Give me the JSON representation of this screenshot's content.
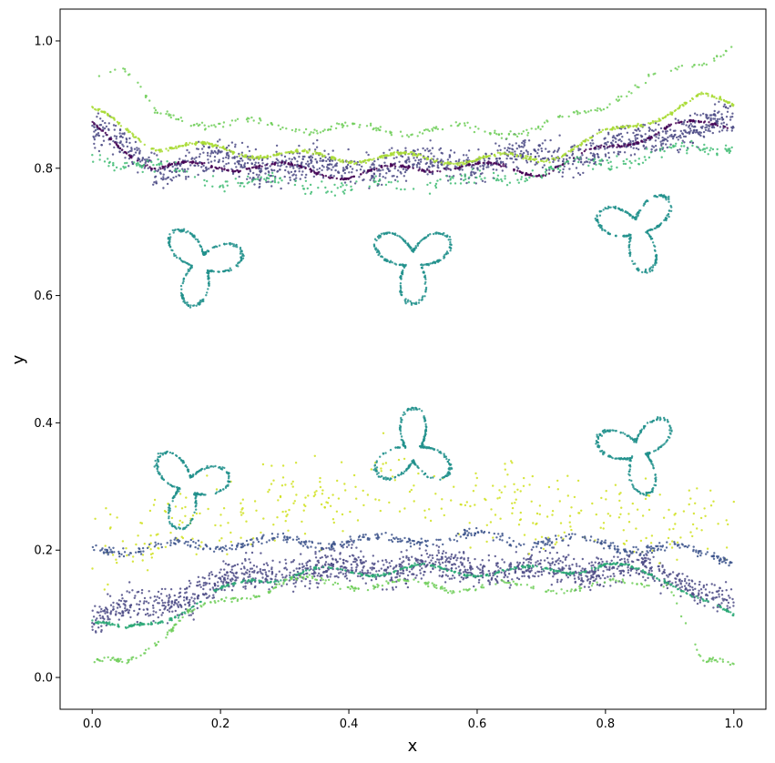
{
  "chart_data": {
    "type": "scatter",
    "title": "",
    "xlabel": "x",
    "ylabel": "y",
    "xlim": [
      -0.05,
      1.05
    ],
    "ylim": [
      -0.05,
      1.05
    ],
    "xticks": [
      "0.0",
      "0.2",
      "0.4",
      "0.6",
      "0.8",
      "1.0"
    ],
    "yticks": [
      "0.0",
      "0.2",
      "0.4",
      "0.6",
      "0.8",
      "1.0"
    ],
    "grid": false,
    "legend": "none",
    "colormap": [
      "#440154",
      "#3b528b",
      "#21918c",
      "#5ec962",
      "#a8db34",
      "#dde318"
    ],
    "point_size": 1.2,
    "series": [
      {
        "color": "#4b4a85",
        "kind": "upper-band",
        "center": [
          [
            0.0,
            0.86
          ],
          [
            0.1,
            0.8
          ],
          [
            0.2,
            0.81
          ],
          [
            0.4,
            0.8
          ],
          [
            0.6,
            0.81
          ],
          [
            0.8,
            0.83
          ],
          [
            0.9,
            0.86
          ],
          [
            1.0,
            0.87
          ]
        ],
        "spread": 0.05,
        "count": 1400
      },
      {
        "color": "#a8db34",
        "kind": "upper-line",
        "center": [
          [
            0.0,
            0.89
          ],
          [
            0.1,
            0.835
          ],
          [
            0.2,
            0.83
          ],
          [
            0.3,
            0.82
          ],
          [
            0.5,
            0.815
          ],
          [
            0.7,
            0.815
          ],
          [
            0.85,
            0.87
          ],
          [
            0.95,
            0.91
          ],
          [
            1.0,
            0.9
          ]
        ],
        "spread": 0.005,
        "count": 600
      },
      {
        "color": "#440154",
        "kind": "upper-line",
        "center": [
          [
            0.0,
            0.865
          ],
          [
            0.1,
            0.8
          ],
          [
            0.25,
            0.805
          ],
          [
            0.4,
            0.79
          ],
          [
            0.55,
            0.805
          ],
          [
            0.7,
            0.795
          ],
          [
            0.9,
            0.865
          ],
          [
            1.0,
            0.87
          ]
        ],
        "spread": 0.004,
        "count": 450
      },
      {
        "color": "#3fbc73",
        "kind": "upper-fringe",
        "center": [
          [
            0.0,
            0.82
          ],
          [
            0.2,
            0.78
          ],
          [
            0.4,
            0.77
          ],
          [
            0.6,
            0.78
          ],
          [
            0.8,
            0.81
          ],
          [
            1.0,
            0.84
          ]
        ],
        "spread": 0.02,
        "count": 300
      },
      {
        "color": "#6ece58",
        "kind": "upper-fringe",
        "center": [
          [
            0.0,
            0.95
          ],
          [
            0.05,
            0.96
          ],
          [
            0.1,
            0.88
          ],
          [
            0.3,
            0.865
          ],
          [
            0.5,
            0.86
          ],
          [
            0.7,
            0.86
          ],
          [
            0.9,
            0.95
          ],
          [
            1.0,
            0.99
          ]
        ],
        "spread": 0.01,
        "count": 250
      },
      {
        "color": "#4b4a85",
        "kind": "lower-band",
        "center": [
          [
            0.0,
            0.1
          ],
          [
            0.1,
            0.11
          ],
          [
            0.2,
            0.15
          ],
          [
            0.3,
            0.17
          ],
          [
            0.5,
            0.175
          ],
          [
            0.7,
            0.17
          ],
          [
            0.85,
            0.17
          ],
          [
            0.95,
            0.14
          ],
          [
            1.0,
            0.11
          ]
        ],
        "spread": 0.05,
        "count": 1500
      },
      {
        "color": "#2aa876",
        "kind": "lower-line",
        "center": [
          [
            0.0,
            0.09
          ],
          [
            0.05,
            0.07
          ],
          [
            0.15,
            0.11
          ],
          [
            0.25,
            0.155
          ],
          [
            0.35,
            0.165
          ],
          [
            0.5,
            0.17
          ],
          [
            0.65,
            0.165
          ],
          [
            0.8,
            0.175
          ],
          [
            0.9,
            0.155
          ],
          [
            1.0,
            0.09
          ]
        ],
        "spread": 0.004,
        "count": 500
      },
      {
        "color": "#6ece58",
        "kind": "lower-fringe",
        "center": [
          [
            0.05,
            0.02
          ],
          [
            0.15,
            0.1
          ],
          [
            0.3,
            0.15
          ],
          [
            0.5,
            0.145
          ],
          [
            0.7,
            0.14
          ],
          [
            0.9,
            0.15
          ],
          [
            0.95,
            0.02
          ]
        ],
        "spread": 0.008,
        "count": 300
      },
      {
        "color": "#cfe01c",
        "kind": "lower-scatter",
        "center": [
          [
            0.0,
            0.2
          ],
          [
            0.2,
            0.25
          ],
          [
            0.4,
            0.3
          ],
          [
            0.6,
            0.28
          ],
          [
            0.8,
            0.26
          ],
          [
            1.0,
            0.24
          ]
        ],
        "spread": 0.12,
        "count": 380
      },
      {
        "color": "#3b528b",
        "kind": "lower-fringe",
        "center": [
          [
            0.0,
            0.2
          ],
          [
            0.2,
            0.21
          ],
          [
            0.4,
            0.215
          ],
          [
            0.6,
            0.22
          ],
          [
            0.8,
            0.21
          ],
          [
            1.0,
            0.19
          ]
        ],
        "spread": 0.015,
        "count": 500
      }
    ],
    "islands": [
      {
        "color": "#21918c",
        "cx": 0.17,
        "cy": 0.65,
        "r": 0.065,
        "rot": 0.25,
        "count": 260
      },
      {
        "color": "#21918c",
        "cx": 0.5,
        "cy": 0.655,
        "r": 0.065,
        "rot": -1.57,
        "count": 260
      },
      {
        "color": "#21918c",
        "cx": 0.85,
        "cy": 0.705,
        "r": 0.065,
        "rot": 0.75,
        "count": 260
      },
      {
        "color": "#21918c",
        "cx": 0.15,
        "cy": 0.3,
        "r": 0.065,
        "rot": 0.25,
        "count": 260
      },
      {
        "color": "#21918c",
        "cx": 0.5,
        "cy": 0.355,
        "r": 0.065,
        "rot": 1.57,
        "count": 260
      },
      {
        "color": "#21918c",
        "cx": 0.85,
        "cy": 0.355,
        "r": 0.065,
        "rot": 0.75,
        "count": 260
      }
    ]
  }
}
